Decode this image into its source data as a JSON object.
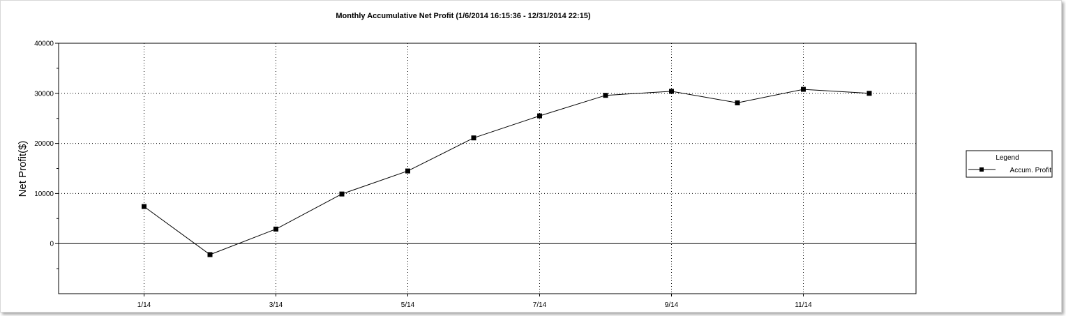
{
  "chart_data": {
    "type": "line",
    "title": "Monthly Accumulative Net Profit (1/6/2014 16:15:36 - 12/31/2014 22:15)",
    "xlabel": "",
    "ylabel": "Net Profit($)",
    "categories": [
      "1/14",
      "2/14",
      "3/14",
      "4/14",
      "5/14",
      "6/14",
      "7/14",
      "8/14",
      "9/14",
      "10/14",
      "11/14",
      "12/14"
    ],
    "x_tick_labels": [
      "1/14",
      "3/14",
      "5/14",
      "7/14",
      "9/14",
      "11/14"
    ],
    "y_tick_labels": [
      "40000",
      "30000",
      "20000",
      "10000",
      "0"
    ],
    "ylim": [
      -10000,
      40000
    ],
    "grid": true,
    "series": [
      {
        "name": "Accum. Profit",
        "values": [
          7400,
          -2200,
          2900,
          9900,
          14500,
          21100,
          25500,
          29600,
          30400,
          28100,
          30800,
          30000
        ]
      }
    ],
    "legend": {
      "title": "Legend",
      "placement": "right"
    }
  },
  "colors": {
    "line": "#000000",
    "marker": "#000000",
    "grid": "#000000",
    "background": "#ffffff"
  }
}
